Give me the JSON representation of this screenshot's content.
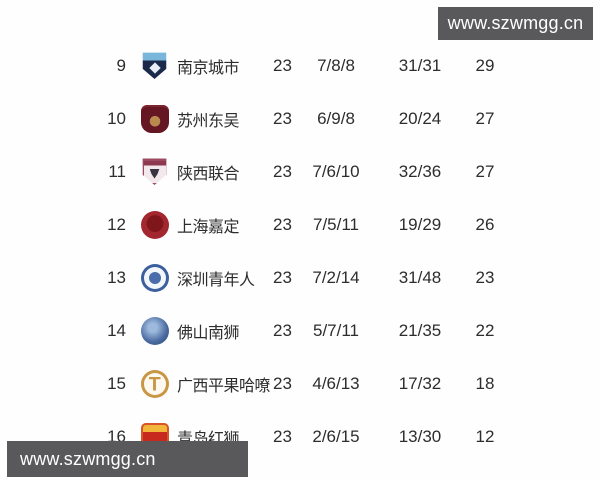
{
  "watermarks": {
    "top_text": "www.szwmgg.cn",
    "bottom_text": "www.szwmgg.cn",
    "bar_color": "#59595b",
    "text_color": "#ffffff"
  },
  "table": {
    "columns": [
      "rank",
      "crest",
      "team",
      "played",
      "win-draw-loss",
      "goals-for-against",
      "points"
    ],
    "rows": [
      {
        "rank": "9",
        "team": "南京城市",
        "played": "23",
        "wdl": "7/8/8",
        "goals": "31/31",
        "points": "29",
        "badge": "nanjing-city-crest-icon",
        "badge_style": "navy-shield"
      },
      {
        "rank": "10",
        "team": "苏州东吴",
        "played": "23",
        "wdl": "6/9/8",
        "goals": "20/24",
        "points": "27",
        "badge": "suzhou-dongwu-crest-icon",
        "badge_style": "maroon-crest"
      },
      {
        "rank": "11",
        "team": "陕西联合",
        "played": "23",
        "wdl": "7/6/10",
        "goals": "32/36",
        "points": "27",
        "badge": "shaanxi-united-crest-icon",
        "badge_style": "wolf-shield"
      },
      {
        "rank": "12",
        "team": "上海嘉定",
        "played": "23",
        "wdl": "7/5/11",
        "goals": "19/29",
        "points": "26",
        "badge": "shanghai-jiading-crest-icon",
        "badge_style": "red-lion-circle"
      },
      {
        "rank": "13",
        "team": "深圳青年人",
        "played": "23",
        "wdl": "7/2/14",
        "goals": "31/48",
        "points": "23",
        "badge": "shenzhen-youth-crest-icon",
        "badge_style": "blue-ring-circle"
      },
      {
        "rank": "14",
        "team": "佛山南狮",
        "played": "23",
        "wdl": "5/7/11",
        "goals": "21/35",
        "points": "22",
        "badge": "foshan-nanshi-crest-icon",
        "badge_style": "blue-lion-circle"
      },
      {
        "rank": "15",
        "team": "广西平果哈嘹",
        "played": "23",
        "wdl": "4/6/13",
        "goals": "17/32",
        "points": "18",
        "badge": "guangxi-pingguo-crest-icon",
        "badge_style": "gold-ring-circle"
      },
      {
        "rank": "16",
        "team": "青岛红狮",
        "played": "23",
        "wdl": "2/6/15",
        "goals": "13/30",
        "points": "12",
        "badge": "qingdao-redlion-crest-icon",
        "badge_style": "red-gold-shield"
      }
    ]
  }
}
